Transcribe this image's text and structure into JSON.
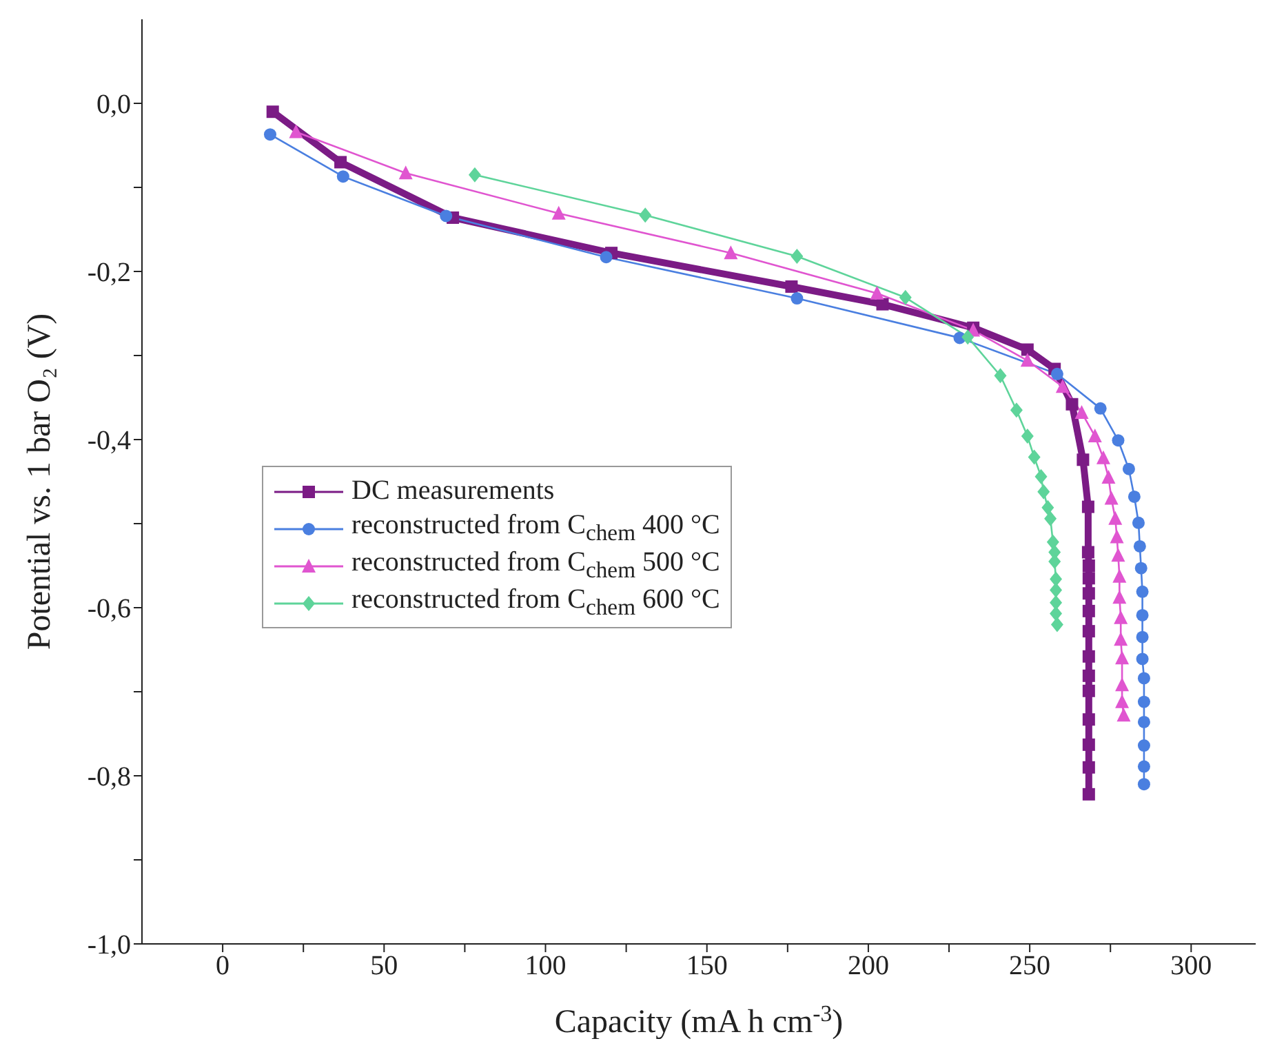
{
  "chart_data": {
    "type": "line",
    "xlabel": "Capacity (mA h cm$^{-3}$)",
    "ylabel": "Potential vs. 1 bar O₂ (V)",
    "xlim": [
      -25,
      320
    ],
    "ylim": [
      -1,
      0.1
    ],
    "xticks": [
      {
        "value": 0,
        "label": "0"
      },
      {
        "value": 25,
        "label": null
      },
      {
        "value": 50,
        "label": "50"
      },
      {
        "value": 75,
        "label": null
      },
      {
        "value": 100,
        "label": "100"
      },
      {
        "value": 125,
        "label": null
      },
      {
        "value": 150,
        "label": "150"
      },
      {
        "value": 175,
        "label": null
      },
      {
        "value": 200,
        "label": "200"
      },
      {
        "value": 225,
        "label": null
      },
      {
        "value": 250,
        "label": "250"
      },
      {
        "value": 275,
        "label": null
      },
      {
        "value": 300,
        "label": "300"
      }
    ],
    "yticks": [
      {
        "value": -1,
        "label": "-1,0"
      },
      {
        "value": -0.9,
        "label": null
      },
      {
        "value": -0.8,
        "label": "-0,8"
      },
      {
        "value": -0.7,
        "label": null
      },
      {
        "value": -0.6,
        "label": "-0,6"
      },
      {
        "value": -0.5,
        "label": null
      },
      {
        "value": -0.4,
        "label": "-0,4"
      },
      {
        "value": -0.3,
        "label": null
      },
      {
        "value": -0.2,
        "label": "-0,2"
      },
      {
        "value": -0.1,
        "label": null
      },
      {
        "value": 0,
        "label": "0,0"
      }
    ],
    "grid": false,
    "legend": "left",
    "line_style": "solid",
    "series": [
      {
        "name": "DC measurements",
        "color": "#7b1b85",
        "marker": "square",
        "x": [
          15.5,
          36.5,
          71.3,
          120.4,
          176.2,
          204.4,
          232.5,
          249.3,
          257.7,
          263.1,
          266.5,
          268.1,
          268.1,
          268.3,
          268.3,
          268.3,
          268.3,
          268.3,
          268.3,
          268.3,
          268.3,
          268.3,
          268.3,
          268.3,
          268.3
        ],
        "values": [
          -0.01,
          -0.07,
          -0.136,
          -0.178,
          -0.218,
          -0.239,
          -0.267,
          -0.293,
          -0.316,
          -0.358,
          -0.424,
          -0.48,
          -0.534,
          -0.55,
          -0.565,
          -0.583,
          -0.604,
          -0.628,
          -0.658,
          -0.681,
          -0.699,
          -0.733,
          -0.763,
          -0.79,
          -0.822
        ]
      },
      {
        "name": "reconstructed from C$_{chem}$ 400 °C",
        "color": "#4a7fe0",
        "marker": "circle",
        "x": [
          14.7,
          37.3,
          69.2,
          118.8,
          177.9,
          228.3,
          258.5,
          271.9,
          277.4,
          280.7,
          282.4,
          283.7,
          284.1,
          284.5,
          284.9,
          284.9,
          284.9,
          284.9,
          285.4,
          285.4,
          285.4,
          285.4,
          285.4,
          285.4
        ],
        "values": [
          -0.037,
          -0.087,
          -0.134,
          -0.183,
          -0.232,
          -0.279,
          -0.322,
          -0.363,
          -0.401,
          -0.435,
          -0.468,
          -0.499,
          -0.527,
          -0.553,
          -0.581,
          -0.609,
          -0.635,
          -0.661,
          -0.684,
          -0.712,
          -0.736,
          -0.764,
          -0.789,
          -0.81
        ]
      },
      {
        "name": "reconstructed from C$_{chem}$ 500 °C",
        "color": "#e055d0",
        "marker": "triangle",
        "x": [
          22.7,
          56.7,
          104.1,
          157.4,
          202.7,
          232.5,
          249.3,
          260.2,
          266.1,
          270.2,
          272.8,
          274.4,
          275.3,
          276.5,
          277,
          277.4,
          277.8,
          277.8,
          278.2,
          278.2,
          278.6,
          278.6,
          278.6,
          279.1
        ],
        "values": [
          -0.034,
          -0.083,
          -0.131,
          -0.178,
          -0.226,
          -0.27,
          -0.306,
          -0.337,
          -0.368,
          -0.396,
          -0.422,
          -0.445,
          -0.47,
          -0.494,
          -0.516,
          -0.538,
          -0.563,
          -0.588,
          -0.612,
          -0.638,
          -0.66,
          -0.692,
          -0.712,
          -0.728
        ]
      },
      {
        "name": "reconstructed from C$_{chem}$ 600 °C",
        "color": "#5ed49a",
        "marker": "diamond",
        "x": [
          78.1,
          130.9,
          177.9,
          211.5,
          230.8,
          240.9,
          245.9,
          249.3,
          251.4,
          253.5,
          254.3,
          255.6,
          256.4,
          257.2,
          257.7,
          257.7,
          258.1,
          258.1,
          258.1,
          258.1,
          258.5
        ],
        "values": [
          -0.085,
          -0.133,
          -0.182,
          -0.231,
          -0.278,
          -0.324,
          -0.365,
          -0.396,
          -0.421,
          -0.444,
          -0.462,
          -0.481,
          -0.494,
          -0.522,
          -0.534,
          -0.545,
          -0.566,
          -0.579,
          -0.594,
          -0.607,
          -0.62
        ]
      }
    ]
  }
}
